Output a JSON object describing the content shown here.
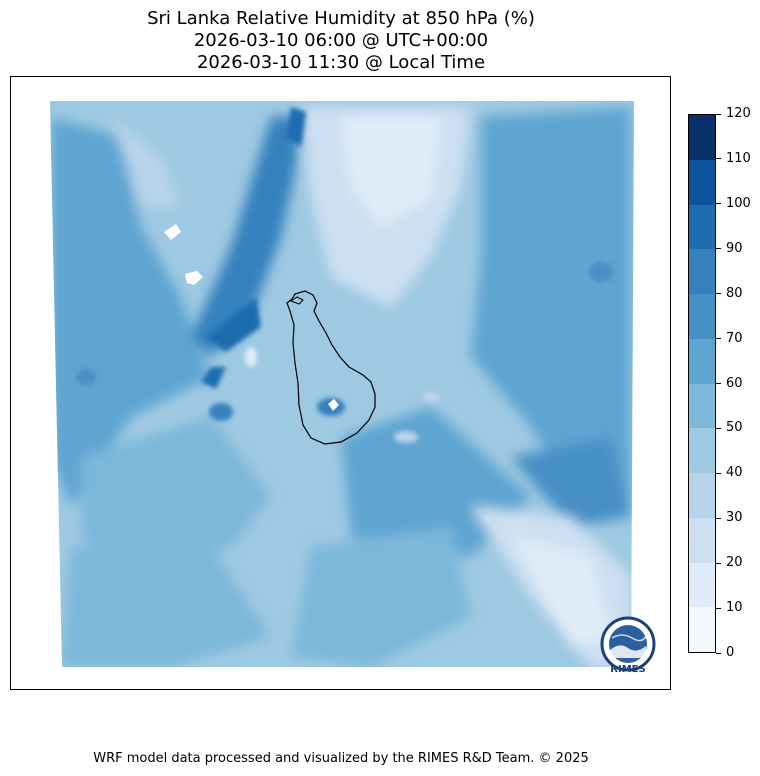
{
  "title": {
    "line1": "Sri Lanka Relative Humidity at 850 hPa (%)",
    "line2": "2026-03-10 06:00 @ UTC+00:00",
    "line3": "2026-03-10 11:30 @ Local Time"
  },
  "colorbar": {
    "levels": [
      0,
      10,
      20,
      30,
      40,
      50,
      60,
      70,
      80,
      90,
      100,
      110,
      120
    ],
    "labels": [
      "0",
      "10",
      "20",
      "30",
      "40",
      "50",
      "60",
      "70",
      "80",
      "90",
      "100",
      "110",
      "120"
    ],
    "colors": [
      "#f1f7fd",
      "#dfecf8",
      "#cde0f2",
      "#b8d4ea",
      "#9ec9e2",
      "#7db8da",
      "#5ea5d1",
      "#4690c6",
      "#3481be",
      "#1f6db0",
      "#0b559f",
      "#08306b"
    ]
  },
  "map": {
    "region": "Sri Lanka",
    "variable": "Relative Humidity",
    "level": "850 hPa"
  },
  "logo": {
    "text": "RIMES"
  },
  "footer": {
    "credit": "WRF model data processed and visualized by the RIMES R&D Team. © 2025"
  }
}
